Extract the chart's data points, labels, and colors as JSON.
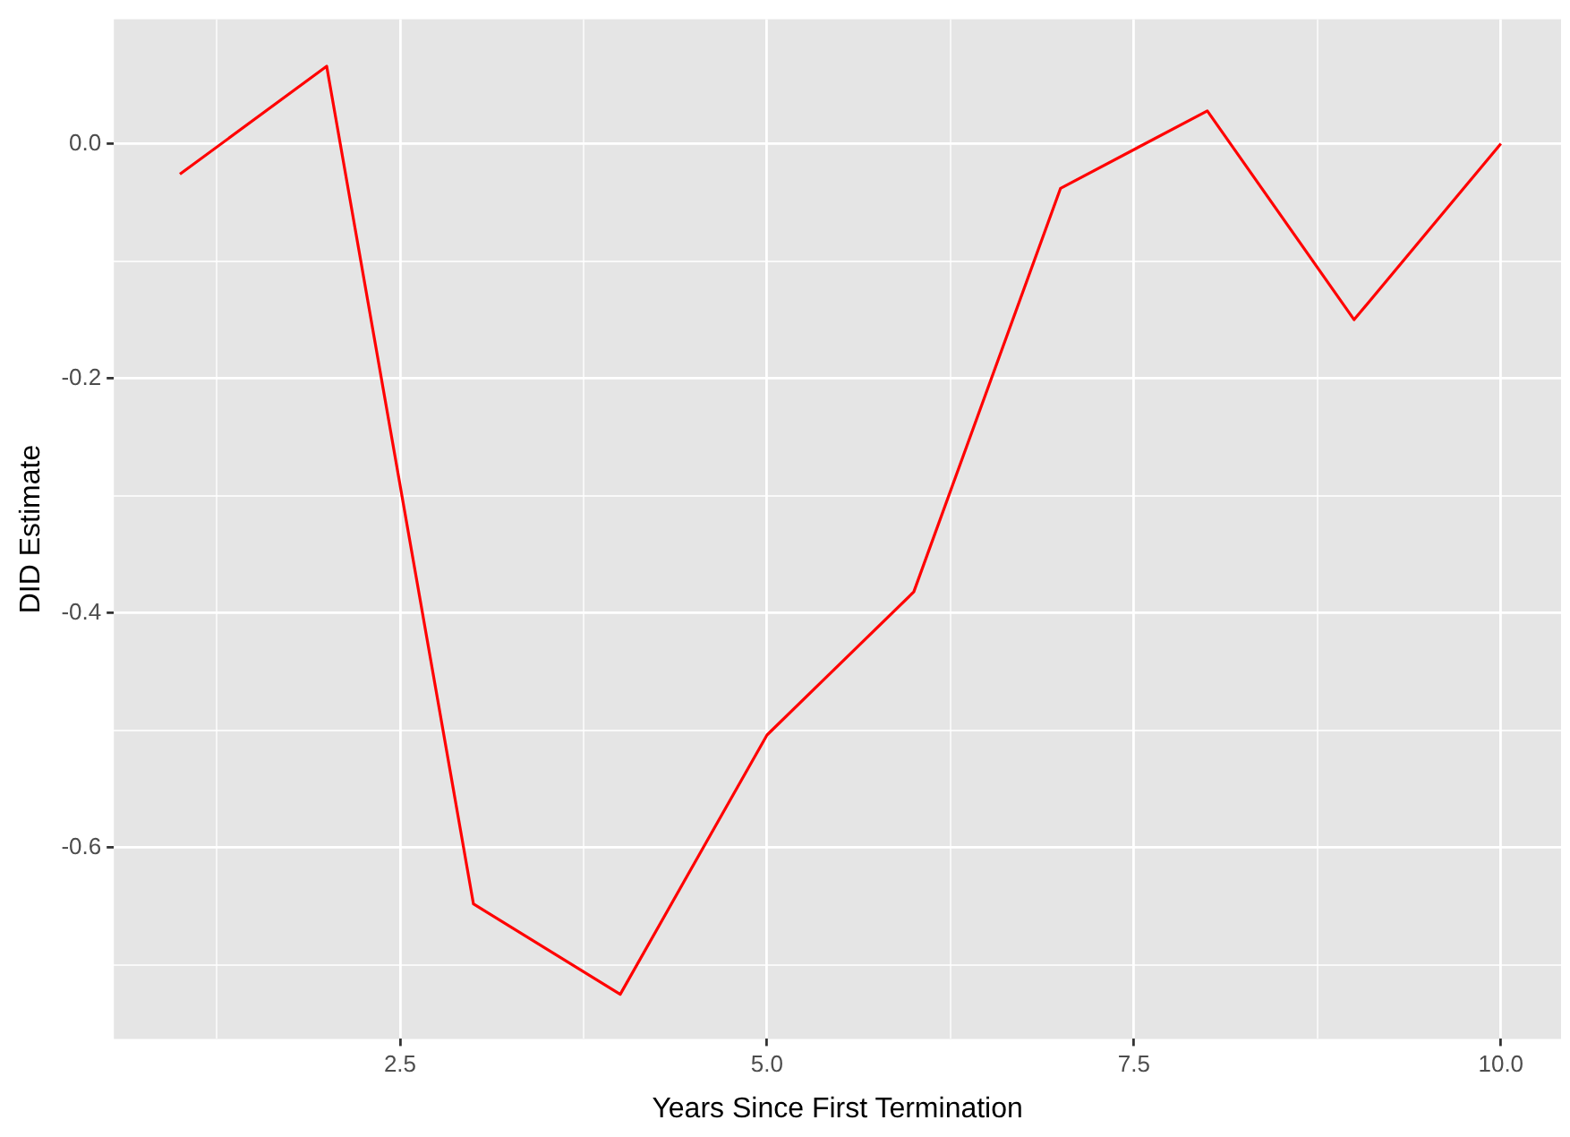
{
  "chart_data": {
    "type": "line",
    "xlabel": "Years Since First Termination",
    "ylabel": "DID Estimate",
    "x": [
      1,
      2,
      3,
      4,
      5,
      6,
      7,
      8,
      9,
      10
    ],
    "series": [
      {
        "color": "#ff0000",
        "values": [
          -0.026,
          0.066,
          -0.648,
          -0.725,
          -0.504,
          -0.382,
          -0.038,
          0.028,
          -0.15,
          0.0
        ]
      }
    ],
    "xlim": [
      0.55,
      10.41
    ],
    "ylim": [
      -0.763,
      0.106
    ],
    "xticks": [
      {
        "value": 1.25,
        "label": null
      },
      2.5,
      {
        "value": 3.75,
        "label": null
      },
      {
        "value": 5,
        "label": "5.0"
      },
      {
        "value": 6.25,
        "label": null
      },
      7.5,
      {
        "value": 8.75,
        "label": null
      },
      {
        "value": 10,
        "label": "10.0"
      }
    ],
    "yticks": [
      {
        "value": -0.7,
        "label": null
      },
      {
        "value": -0.6,
        "label": "-0.6"
      },
      {
        "value": -0.5,
        "label": null
      },
      {
        "value": -0.4,
        "label": "-0.4"
      },
      {
        "value": -0.3,
        "label": null
      },
      {
        "value": -0.2,
        "label": "-0.2"
      },
      {
        "value": -0.1,
        "label": null
      },
      {
        "value": 0,
        "label": "0.0"
      }
    ],
    "grid": true,
    "legend": false,
    "marker": "none",
    "line_style": "solid"
  }
}
